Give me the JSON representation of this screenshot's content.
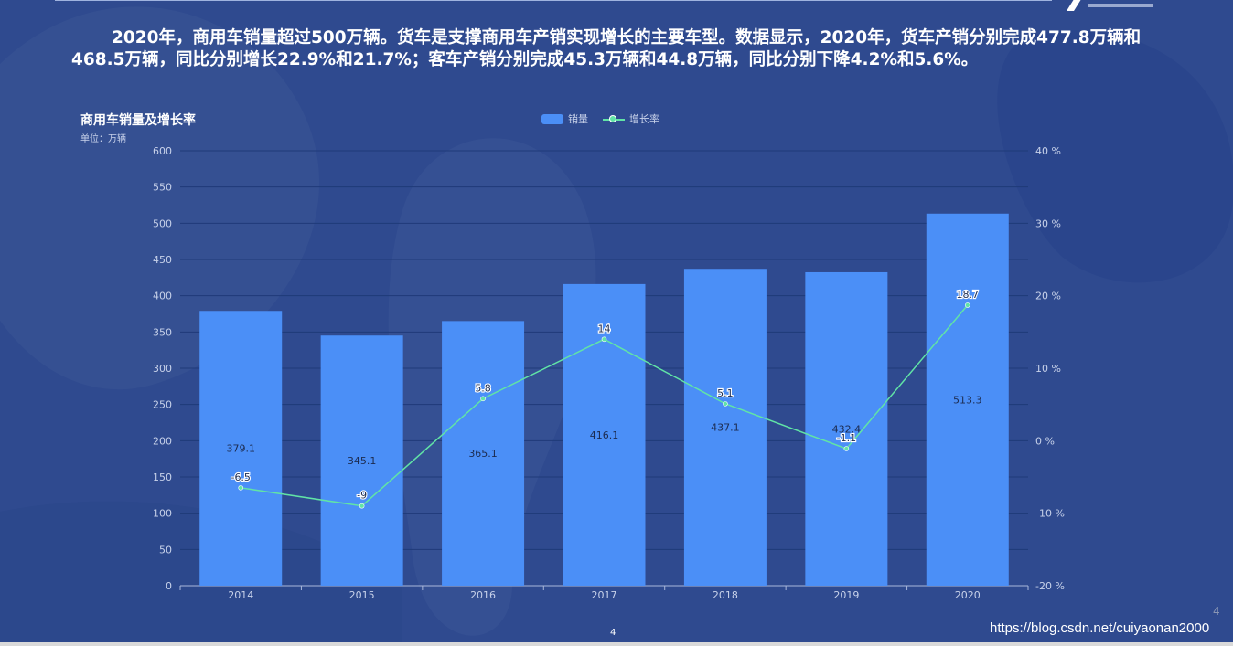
{
  "headline": "2020年，商用车销量超过500万辆。货车是支撑商用车产销实现增长的主要车型。数据显示，2020年，货车产销分别完成477.8万辆和468.5万辆，同比分别增长22.9%和21.7%；客车产销分别完成45.3万辆和44.8万辆，同比分别下降4.2%和5.6%。",
  "page_number_center": "4",
  "page_number_right": "4",
  "watermark": "https://blog.csdn.net/cuiyaonan2000",
  "colors": {
    "background": "#2f4a8f",
    "bar": "#4b8ff7",
    "line": "#61e4a6",
    "text": "#ffffff",
    "axis_text": "#c8d2ea"
  },
  "chart_data": {
    "type": "bar",
    "title": "商用车销量及增长率",
    "subtitle": "单位：万辆",
    "categories": [
      "2014",
      "2015",
      "2016",
      "2017",
      "2018",
      "2019",
      "2020"
    ],
    "series": [
      {
        "name": "销量",
        "type": "bar",
        "axis": "left",
        "values": [
          379.1,
          345.1,
          365.1,
          416.1,
          437.1,
          432.4,
          513.3
        ],
        "labels": [
          "379.1",
          "345.1",
          "365.1",
          "416.1",
          "437.1",
          "432.4",
          "513.3"
        ]
      },
      {
        "name": "增长率",
        "type": "line",
        "axis": "right",
        "values": [
          -6.5,
          -9,
          5.8,
          14,
          5.1,
          -1.1,
          18.7
        ],
        "labels": [
          "-6.5",
          "-9",
          "5.8",
          "14",
          "5.1",
          "-1.1",
          "18.7"
        ]
      }
    ],
    "y_left": {
      "min": 0,
      "max": 600,
      "ticks": [
        "0",
        "50",
        "100",
        "150",
        "200",
        "250",
        "300",
        "350",
        "400",
        "450",
        "500",
        "550",
        "600"
      ]
    },
    "y_right": {
      "min": -20,
      "max": 40,
      "ticks": [
        "-20 %",
        "-10 %",
        "0 %",
        "10 %",
        "20 %",
        "30 %",
        "40 %"
      ]
    },
    "legend_position": "top-center",
    "grid": true
  }
}
